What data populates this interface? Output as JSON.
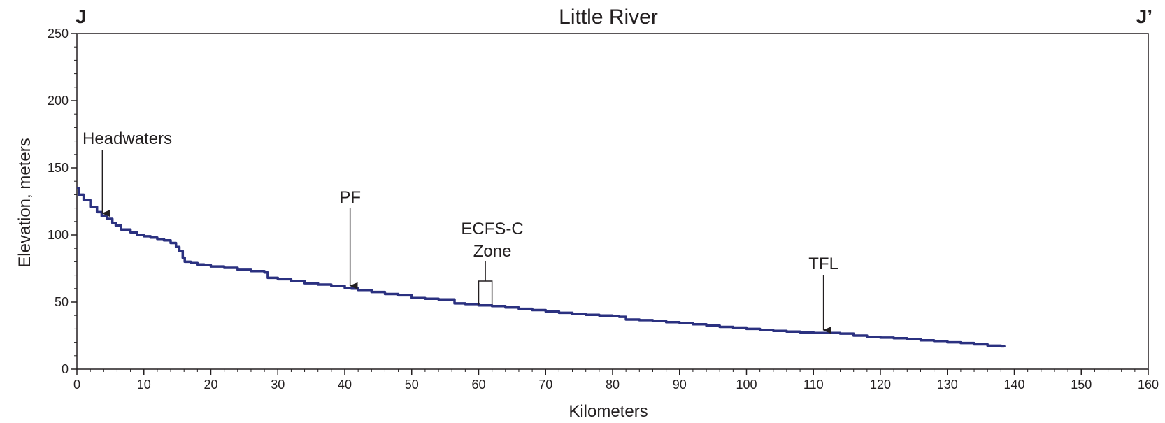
{
  "chart_data": {
    "type": "line",
    "title": "Little River",
    "corner_labels": {
      "left": "J",
      "right": "J’"
    },
    "xlabel": "Kilometers",
    "ylabel": "Elevation, meters",
    "xlim": [
      0,
      160
    ],
    "ylim": [
      0,
      250
    ],
    "x_ticks": [
      "0",
      "10",
      "20",
      "30",
      "40",
      "50",
      "60",
      "70",
      "80",
      "90",
      "100",
      "110",
      "120",
      "130",
      "140",
      "150",
      "160"
    ],
    "y_ticks": [
      "0",
      "50",
      "100",
      "150",
      "200",
      "250"
    ],
    "grid": false,
    "line_color": "#2b3180",
    "series": [
      {
        "points": [
          [
            0,
            135
          ],
          [
            0.3,
            130
          ],
          [
            1,
            126
          ],
          [
            2,
            121
          ],
          [
            3,
            117
          ],
          [
            3.7,
            114
          ],
          [
            4.5,
            112
          ],
          [
            5.3,
            109
          ],
          [
            5.8,
            107
          ],
          [
            6.5,
            107
          ],
          [
            6.6,
            104
          ],
          [
            8,
            102
          ],
          [
            9,
            100
          ],
          [
            10,
            99
          ],
          [
            11,
            98
          ],
          [
            12,
            97
          ],
          [
            13,
            96
          ],
          [
            14,
            94
          ],
          [
            14.8,
            91
          ],
          [
            15.3,
            88
          ],
          [
            15.8,
            83
          ],
          [
            16.1,
            80
          ],
          [
            17,
            79
          ],
          [
            18,
            78
          ],
          [
            19,
            77.5
          ],
          [
            20,
            76.5
          ],
          [
            22,
            75.5
          ],
          [
            24,
            74
          ],
          [
            26,
            73
          ],
          [
            28,
            72
          ],
          [
            28.5,
            68
          ],
          [
            30,
            67
          ],
          [
            32,
            65.5
          ],
          [
            34,
            64
          ],
          [
            36,
            63
          ],
          [
            38,
            62
          ],
          [
            40,
            60.5
          ],
          [
            41,
            60
          ],
          [
            42,
            59
          ],
          [
            44,
            57.5
          ],
          [
            46,
            56
          ],
          [
            48,
            55
          ],
          [
            50,
            53
          ],
          [
            52,
            52.5
          ],
          [
            54,
            52
          ],
          [
            56,
            52
          ],
          [
            56.4,
            49
          ],
          [
            58,
            48.5
          ],
          [
            60,
            47.5
          ],
          [
            62,
            47
          ],
          [
            64,
            46
          ],
          [
            66,
            45
          ],
          [
            68,
            44
          ],
          [
            70,
            43
          ],
          [
            72,
            42
          ],
          [
            74,
            41
          ],
          [
            76,
            40.5
          ],
          [
            78,
            40
          ],
          [
            80,
            39.5
          ],
          [
            81,
            39
          ],
          [
            82,
            37
          ],
          [
            84,
            36.5
          ],
          [
            86,
            36
          ],
          [
            88,
            35
          ],
          [
            90,
            34.5
          ],
          [
            92,
            33.5
          ],
          [
            94,
            32.5
          ],
          [
            96,
            31.5
          ],
          [
            98,
            31
          ],
          [
            100,
            30
          ],
          [
            102,
            29
          ],
          [
            104,
            28.5
          ],
          [
            106,
            28
          ],
          [
            108,
            27.5
          ],
          [
            110,
            27
          ],
          [
            112,
            27
          ],
          [
            114,
            26.5
          ],
          [
            116,
            25
          ],
          [
            118,
            24
          ],
          [
            120,
            23.5
          ],
          [
            122,
            23
          ],
          [
            124,
            22.5
          ],
          [
            126,
            21.5
          ],
          [
            128,
            21
          ],
          [
            130,
            20
          ],
          [
            132,
            19.5
          ],
          [
            134,
            18.5
          ],
          [
            136,
            17.5
          ],
          [
            138,
            17
          ],
          [
            138.5,
            16.5
          ]
        ]
      }
    ],
    "annotations": [
      {
        "id": "headwaters",
        "text": "Headwaters",
        "x": 3.8,
        "y": 114,
        "type": "arrow"
      },
      {
        "id": "pf",
        "text": "PF",
        "x": 40.8,
        "y": 60,
        "type": "arrow"
      },
      {
        "id": "ecfs",
        "text": [
          "ECFS-C",
          "Zone"
        ],
        "x_range": [
          60,
          62
        ],
        "y": 48,
        "type": "bracket"
      },
      {
        "id": "tfl",
        "text": "TFL",
        "x": 111.5,
        "y": 27,
        "type": "arrow"
      }
    ]
  }
}
